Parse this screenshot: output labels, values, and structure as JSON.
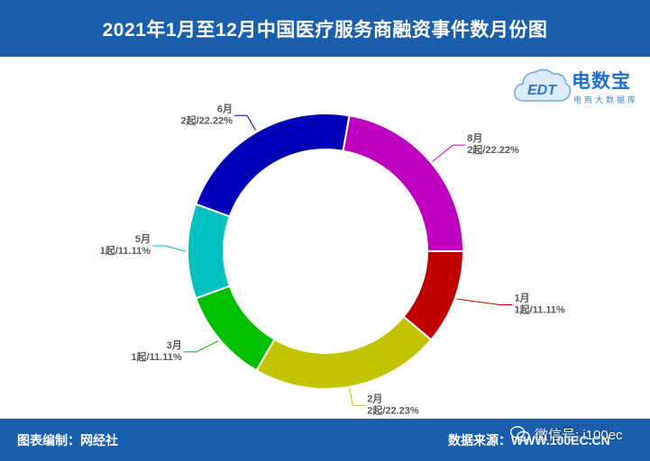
{
  "header": {
    "title": "2021年1月至12月中国医疗服务商融资事件数月份图"
  },
  "logo": {
    "name": "电数宝",
    "subtitle": "电商大数据库",
    "mark": "EDT"
  },
  "footer": {
    "left": "图表编制：网经社",
    "right": "数据来源：WWW.100EC.CN"
  },
  "watermark": {
    "text": "微信号: i100ec"
  },
  "colors": {
    "header_bg": "#1a5fad",
    "slices": [
      "#c00000",
      "#c3c300",
      "#00c000",
      "#00c0c0",
      "#0000b8",
      "#c000c0"
    ]
  },
  "chart_data": {
    "type": "pie",
    "variant": "donut",
    "title": "2021年1月至12月中国医疗服务商融资事件数月份图",
    "slices": [
      {
        "label": "1月",
        "value": 1,
        "count_label": "1起",
        "percent_label": "11.11%"
      },
      {
        "label": "2月",
        "value": 2,
        "count_label": "2起",
        "percent_label": "22.23%"
      },
      {
        "label": "3月",
        "value": 1,
        "count_label": "1起",
        "percent_label": "11.11%"
      },
      {
        "label": "5月",
        "value": 1,
        "count_label": "1起",
        "percent_label": "11.11%"
      },
      {
        "label": "6月",
        "value": 2,
        "count_label": "2起",
        "percent_label": "22.22%"
      },
      {
        "label": "8月",
        "value": 2,
        "count_label": "2起",
        "percent_label": "22.22%"
      }
    ]
  }
}
